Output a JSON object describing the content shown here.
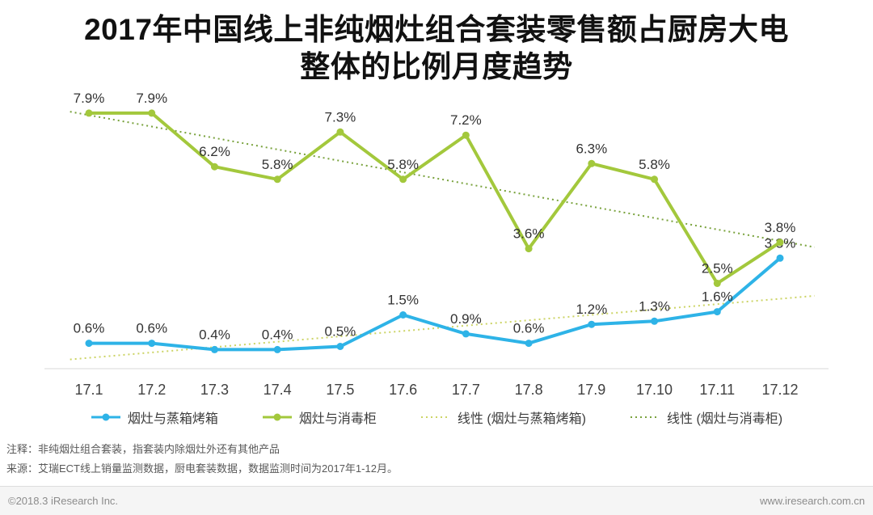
{
  "title": {
    "lines": [
      "2017年中国线上非纯烟灶组合套装零售额占厨房大电",
      "整体的比例月度趋势"
    ]
  },
  "chart_data": {
    "type": "line",
    "title": "2017年中国线上非纯烟灶组合套装零售额占厨房大电整体的比例月度趋势",
    "categories": [
      "17.1",
      "17.2",
      "17.3",
      "17.4",
      "17.5",
      "17.6",
      "17.7",
      "17.8",
      "17.9",
      "17.10",
      "17.11",
      "17.12"
    ],
    "series": [
      {
        "name": "烟灶与蒸箱烤箱",
        "color": "#2eb3e7",
        "values": [
          0.6,
          0.6,
          0.4,
          0.4,
          0.5,
          1.5,
          0.9,
          0.6,
          1.2,
          1.3,
          1.6,
          3.3
        ],
        "label_suffix": "%"
      },
      {
        "name": "烟灶与消毒柜",
        "color": "#a3c83c",
        "values": [
          7.9,
          7.9,
          6.2,
          5.8,
          7.3,
          5.8,
          7.2,
          3.6,
          6.3,
          5.8,
          2.5,
          3.8
        ],
        "label_suffix": "%"
      }
    ],
    "trendlines": [
      {
        "name": "线性 (烟灶与蒸箱烤箱)",
        "series_index": 0,
        "color": "#ccd465"
      },
      {
        "name": "线性 (烟灶与消毒柜)",
        "series_index": 1,
        "color": "#79a23c"
      }
    ],
    "ylim": [
      0,
      8.5
    ],
    "grid": false,
    "legend_position": "bottom",
    "data_labels": true
  },
  "notes": [
    "注释：非纯烟灶组合套装，指套装内除烟灶外还有其他产品",
    "来源：艾瑞ECT线上销量监测数据，厨电套装数据，数据监测时间为2017年1-12月。"
  ],
  "footer": {
    "left": "©2018.3 iResearch Inc.",
    "right": "www.iresearch.com.cn"
  }
}
